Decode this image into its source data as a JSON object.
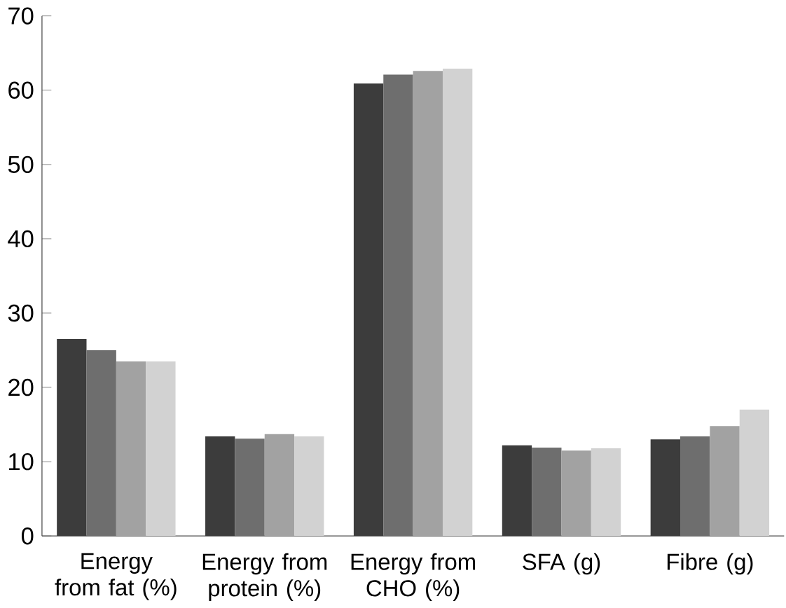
{
  "chart_data": {
    "type": "bar",
    "categories": [
      "Energy from fat (%)",
      "Energy from protein (%)",
      "Energy from CHO (%)",
      "SFA (g)",
      "Fibre (g)"
    ],
    "series": [
      {
        "color": "#3c3c3c",
        "values": [
          26.5,
          13.4,
          60.9,
          12.2,
          13.0
        ]
      },
      {
        "color": "#6e6e6e",
        "values": [
          25.0,
          13.1,
          62.1,
          11.9,
          13.4
        ]
      },
      {
        "color": "#a2a2a2",
        "values": [
          23.5,
          13.7,
          62.6,
          11.5,
          14.8
        ]
      },
      {
        "color": "#d2d2d2",
        "values": [
          23.5,
          13.4,
          62.9,
          11.8,
          17.0
        ]
      }
    ],
    "ylim": [
      0,
      70
    ],
    "yticks": [
      0,
      10,
      20,
      30,
      40,
      50,
      60,
      70
    ],
    "grid": false
  }
}
